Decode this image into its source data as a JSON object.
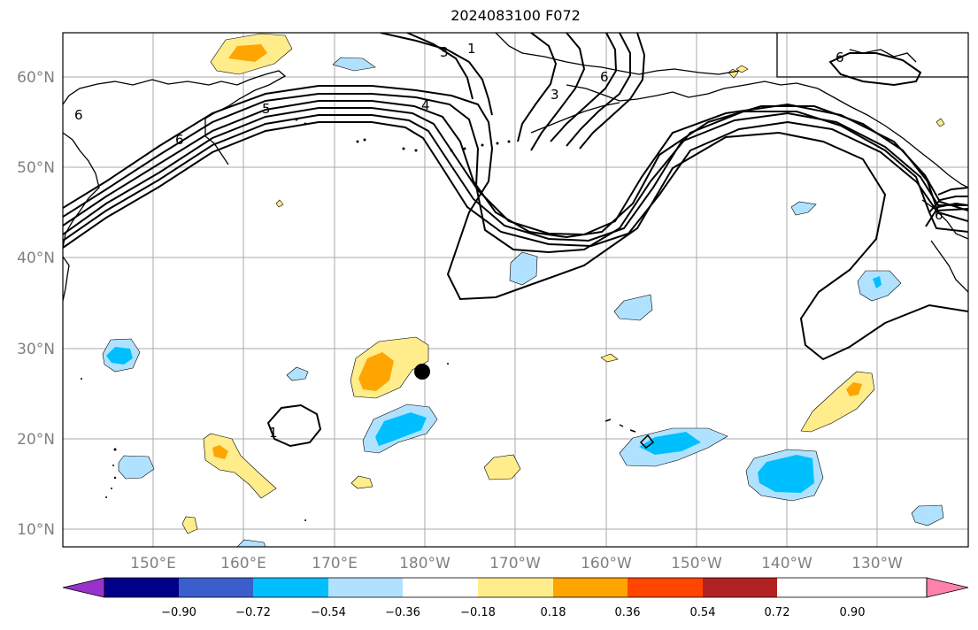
{
  "title": "2024083100 F072",
  "map": {
    "lat_labels": [
      "60°N",
      "50°N",
      "40°N",
      "30°N",
      "20°N",
      "10°N"
    ],
    "lon_labels": [
      "150°E",
      "160°E",
      "170°E",
      "180°W",
      "170°W",
      "160°W",
      "150°W",
      "140°W",
      "130°W"
    ],
    "contour_labels": [
      "6",
      "6",
      "5",
      "3",
      "4",
      "1",
      "3",
      "6",
      "6",
      "1",
      "6"
    ],
    "storm_marker": "black-dot"
  },
  "colorbar": {
    "ticks": [
      "−0.90",
      "−0.72",
      "−0.54",
      "−0.36",
      "−0.18",
      "0.18",
      "0.36",
      "0.54",
      "0.72",
      "0.90"
    ],
    "colors": [
      "#9932CC",
      "#00008B",
      "#3A5FCD",
      "#00BFFF",
      "#B0E2FF",
      "#FFFFFF",
      "#FFEC8B",
      "#FFA500",
      "#FF4500",
      "#B22222",
      "#FF82AB"
    ]
  }
}
